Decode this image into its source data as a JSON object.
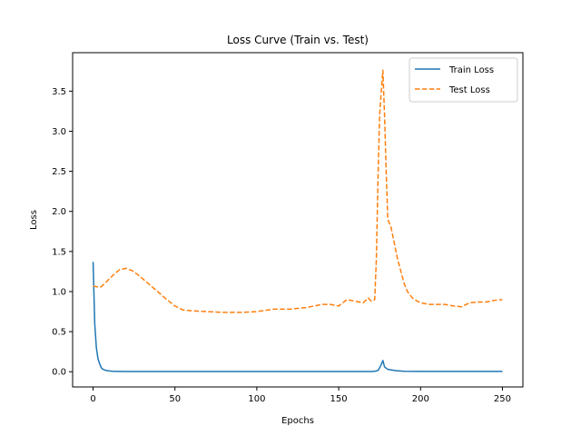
{
  "chart_data": {
    "type": "line",
    "title": "Loss Curve (Train vs. Test)",
    "xlabel": "Epochs",
    "ylabel": "Loss",
    "xlim": [
      -12.5,
      262.5
    ],
    "ylim": [
      -0.19,
      3.98
    ],
    "xticks": [
      0,
      50,
      100,
      150,
      200,
      250
    ],
    "yticks": [
      0.0,
      0.5,
      1.0,
      1.5,
      2.0,
      2.5,
      3.0,
      3.5
    ],
    "ytick_labels": [
      "0.0",
      "0.5",
      "1.0",
      "1.5",
      "2.0",
      "2.5",
      "3.0",
      "3.5"
    ],
    "grid": false,
    "legend_position": "top-right",
    "series": [
      {
        "name": "Train Loss",
        "color": "#1f77b4",
        "style": "solid",
        "x": [
          0,
          1,
          2,
          3,
          4,
          5,
          6,
          8,
          10,
          12,
          15,
          20,
          30,
          50,
          100,
          150,
          170,
          172,
          174,
          175,
          176,
          177,
          178,
          180,
          185,
          190,
          200,
          250
        ],
        "y": [
          1.37,
          0.6,
          0.3,
          0.16,
          0.1,
          0.05,
          0.03,
          0.015,
          0.01,
          0.005,
          0.004,
          0.003,
          0.003,
          0.003,
          0.003,
          0.003,
          0.003,
          0.005,
          0.015,
          0.05,
          0.09,
          0.14,
          0.06,
          0.03,
          0.012,
          0.006,
          0.004,
          0.004
        ]
      },
      {
        "name": "Test Loss",
        "color": "#ff7f0e",
        "style": "dashed",
        "x": [
          0,
          2,
          5,
          8,
          12,
          16,
          20,
          24,
          28,
          32,
          36,
          40,
          45,
          50,
          55,
          60,
          70,
          80,
          90,
          100,
          110,
          120,
          130,
          140,
          145,
          150,
          155,
          160,
          165,
          168,
          170,
          172,
          173,
          174,
          175,
          176,
          177,
          178,
          179,
          180,
          182,
          184,
          186,
          188,
          190,
          192,
          195,
          198,
          200,
          205,
          210,
          215,
          220,
          225,
          230,
          235,
          240,
          245,
          250
        ],
        "y": [
          1.07,
          1.06,
          1.06,
          1.12,
          1.2,
          1.27,
          1.29,
          1.26,
          1.2,
          1.13,
          1.06,
          0.99,
          0.9,
          0.82,
          0.77,
          0.76,
          0.75,
          0.74,
          0.74,
          0.75,
          0.78,
          0.78,
          0.8,
          0.84,
          0.84,
          0.82,
          0.9,
          0.88,
          0.86,
          0.92,
          0.88,
          0.9,
          1.4,
          2.4,
          3.2,
          3.5,
          3.76,
          3.2,
          2.5,
          1.9,
          1.8,
          1.6,
          1.4,
          1.25,
          1.1,
          1.0,
          0.92,
          0.88,
          0.86,
          0.84,
          0.84,
          0.84,
          0.82,
          0.81,
          0.86,
          0.87,
          0.87,
          0.89,
          0.9
        ]
      }
    ]
  }
}
